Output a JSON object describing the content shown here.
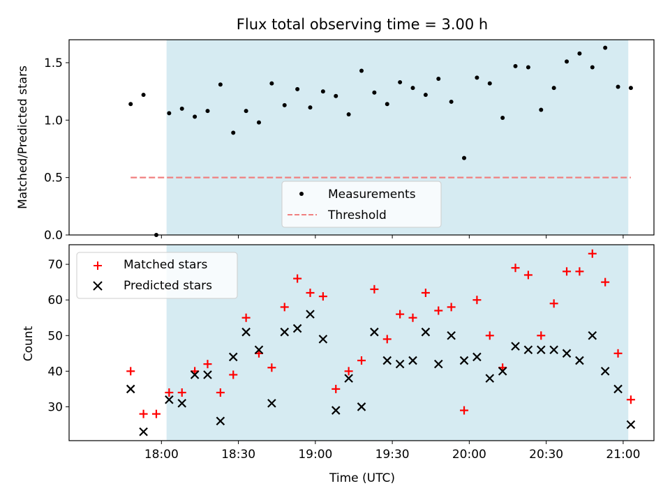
{
  "chart_data": [
    {
      "type": "scatter",
      "title": "Flux total observing time = 3.00 h",
      "ylabel": "Matched/Predicted stars",
      "xlabel": "",
      "ylim": [
        0,
        1.7
      ],
      "yticks": [
        0.0,
        0.5,
        1.0,
        1.5
      ],
      "ytick_labels": [
        "0.0",
        "0.5",
        "1.0",
        "1.5"
      ],
      "xlim": [
        "17:24",
        "21:12"
      ],
      "observing_window": [
        "18:02",
        "21:02"
      ],
      "observing_window_color": "#add8e6",
      "series": [
        {
          "name": "Measurements",
          "kind": "point",
          "color": "#000000",
          "x": [
            "17:48",
            "17:53",
            "17:58",
            "18:03",
            "18:08",
            "18:13",
            "18:18",
            "18:23",
            "18:28",
            "18:33",
            "18:38",
            "18:43",
            "18:48",
            "18:53",
            "18:58",
            "19:03",
            "19:08",
            "19:13",
            "19:18",
            "19:23",
            "19:28",
            "19:33",
            "19:38",
            "19:43",
            "19:48",
            "19:53",
            "19:58",
            "20:03",
            "20:08",
            "20:13",
            "20:18",
            "20:23",
            "20:28",
            "20:33",
            "20:38",
            "20:43",
            "20:48",
            "20:53",
            "20:58",
            "21:03"
          ],
          "y": [
            1.14,
            1.22,
            0.0,
            1.06,
            1.1,
            1.03,
            1.08,
            1.31,
            0.89,
            1.08,
            0.98,
            1.32,
            1.13,
            1.27,
            1.11,
            1.25,
            1.21,
            1.05,
            1.43,
            1.24,
            1.14,
            1.33,
            1.28,
            1.22,
            1.36,
            1.16,
            0.67,
            1.37,
            1.32,
            1.02,
            1.47,
            1.46,
            1.09,
            1.28,
            1.51,
            1.58,
            1.46,
            1.63,
            1.29,
            1.28
          ]
        },
        {
          "name": "Threshold",
          "kind": "dashed-line",
          "color": "#f07f7f",
          "x": [
            "17:48",
            "21:03"
          ],
          "y": [
            0.5,
            0.5
          ]
        }
      ],
      "legend": {
        "placement": "lower-center",
        "entries": [
          "Measurements",
          "Threshold"
        ]
      },
      "grid": false
    },
    {
      "type": "scatter",
      "title": "",
      "ylabel": "Count",
      "xlabel": "Time (UTC)",
      "ylim": [
        20.5,
        75.5
      ],
      "yticks": [
        30,
        40,
        50,
        60,
        70
      ],
      "ytick_labels": [
        "30",
        "40",
        "50",
        "60",
        "70"
      ],
      "xticks": [
        "18:00",
        "18:30",
        "19:00",
        "19:30",
        "20:00",
        "20:30",
        "21:00"
      ],
      "xlim": [
        "17:24",
        "21:12"
      ],
      "observing_window": [
        "18:02",
        "21:02"
      ],
      "observing_window_color": "#add8e6",
      "series": [
        {
          "name": "Matched stars",
          "marker": "+",
          "color": "#ff0000",
          "x": [
            "17:48",
            "17:53",
            "17:58",
            "18:03",
            "18:08",
            "18:13",
            "18:18",
            "18:23",
            "18:28",
            "18:33",
            "18:38",
            "18:43",
            "18:48",
            "18:53",
            "18:58",
            "19:03",
            "19:08",
            "19:13",
            "19:18",
            "19:23",
            "19:28",
            "19:33",
            "19:38",
            "19:43",
            "19:48",
            "19:53",
            "19:58",
            "20:03",
            "20:08",
            "20:13",
            "20:18",
            "20:23",
            "20:28",
            "20:33",
            "20:38",
            "20:43",
            "20:48",
            "20:53",
            "20:58",
            "21:03"
          ],
          "y": [
            40,
            28,
            28,
            34,
            34,
            40,
            42,
            34,
            39,
            55,
            45,
            41,
            58,
            66,
            62,
            61,
            35,
            40,
            43,
            63,
            49,
            56,
            55,
            62,
            57,
            58,
            29,
            60,
            50,
            41,
            69,
            67,
            50,
            59,
            68,
            68,
            73,
            65,
            45,
            32
          ]
        },
        {
          "name": "Predicted stars",
          "marker": "x",
          "color": "#000000",
          "x": [
            "17:48",
            "17:53",
            "18:03",
            "18:08",
            "18:13",
            "18:18",
            "18:23",
            "18:28",
            "18:33",
            "18:38",
            "18:43",
            "18:48",
            "18:53",
            "18:58",
            "19:03",
            "19:08",
            "19:13",
            "19:18",
            "19:23",
            "19:28",
            "19:33",
            "19:38",
            "19:43",
            "19:48",
            "19:53",
            "19:58",
            "20:03",
            "20:08",
            "20:13",
            "20:18",
            "20:23",
            "20:28",
            "20:33",
            "20:38",
            "20:43",
            "20:48",
            "20:53",
            "20:58",
            "21:03"
          ],
          "y": [
            35,
            23,
            32,
            31,
            39,
            39,
            26,
            44,
            51,
            46,
            31,
            51,
            52,
            56,
            49,
            29,
            38,
            30,
            51,
            43,
            42,
            43,
            51,
            42,
            50,
            43,
            44,
            38,
            40,
            47,
            46,
            46,
            46,
            45,
            43,
            50,
            40,
            35,
            25
          ]
        }
      ],
      "legend": {
        "placement": "upper-left",
        "entries": [
          "Matched stars",
          "Predicted stars"
        ]
      },
      "grid": false
    }
  ]
}
